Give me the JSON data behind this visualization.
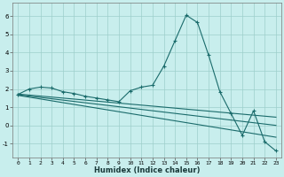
{
  "xlabel": "Humidex (Indice chaleur)",
  "xlim": [
    -0.5,
    23.5
  ],
  "ylim": [
    -1.75,
    6.75
  ],
  "xticks": [
    0,
    1,
    2,
    3,
    4,
    5,
    6,
    7,
    8,
    9,
    10,
    11,
    12,
    13,
    14,
    15,
    16,
    17,
    18,
    19,
    20,
    21,
    22,
    23
  ],
  "yticks": [
    -1,
    0,
    1,
    2,
    3,
    4,
    5,
    6
  ],
  "bg_color": "#c8eeed",
  "grid_color": "#9ecfcb",
  "line_color": "#1a6b6b",
  "curve_x": [
    0,
    1,
    2,
    3,
    4,
    5,
    6,
    7,
    8,
    9,
    10,
    11,
    12,
    13,
    14,
    15,
    16,
    17,
    18,
    19,
    20,
    21,
    22,
    23
  ],
  "curve_y": [
    1.7,
    2.0,
    2.1,
    2.05,
    1.85,
    1.75,
    1.6,
    1.5,
    1.4,
    1.3,
    1.9,
    2.1,
    2.2,
    3.25,
    4.65,
    6.05,
    5.65,
    3.85,
    1.85,
    0.65,
    -0.55,
    0.8,
    -0.9,
    -1.4
  ],
  "trend1_x": [
    0,
    23
  ],
  "trend1_y": [
    1.72,
    0.45
  ],
  "trend2_x": [
    0,
    23
  ],
  "trend2_y": [
    1.68,
    0.0
  ],
  "trend3_x": [
    0,
    23
  ],
  "trend3_y": [
    1.65,
    -0.65
  ]
}
